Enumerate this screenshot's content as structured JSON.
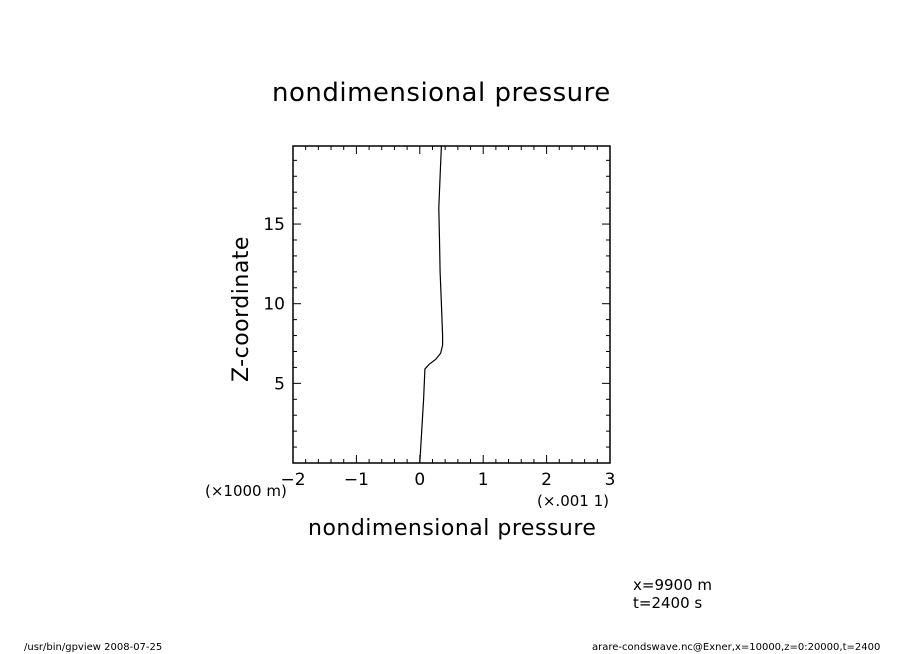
{
  "chart_data": {
    "type": "line",
    "title": "nondimensional pressure",
    "xlabel": "nondimensional pressure",
    "ylabel": "Z-coordinate",
    "x_scale_label": "(×.001 1)",
    "y_scale_label": "(×1000 m)",
    "xlim": [
      -2,
      3
    ],
    "ylim": [
      0,
      19.9
    ],
    "x_ticks": [
      "−2",
      "−1",
      "0",
      "1",
      "2",
      "3"
    ],
    "x_tick_values": [
      -2,
      -1,
      0,
      1,
      2,
      3
    ],
    "y_ticks": [
      "5",
      "10",
      "15"
    ],
    "y_tick_values": [
      5,
      10,
      15
    ],
    "grid": false,
    "series": [
      {
        "x": [
          0.0,
          0.03,
          0.06,
          0.08,
          0.15,
          0.25,
          0.33,
          0.36,
          0.36,
          0.34,
          0.32,
          0.31,
          0.3,
          0.32,
          0.34
        ],
        "y": [
          0.0,
          2.0,
          4.0,
          5.9,
          6.2,
          6.5,
          6.9,
          7.4,
          8.0,
          10.0,
          12.0,
          14.0,
          16.0,
          18.0,
          19.9
        ]
      }
    ]
  },
  "annotations": {
    "position": "x=9900  m",
    "time": "t=2400  s"
  },
  "footer": {
    "left": "/usr/bin/gpview   2008-07-25",
    "right": "arare-condswave.nc@Exner,x=10000,z=0:20000,t=2400"
  }
}
